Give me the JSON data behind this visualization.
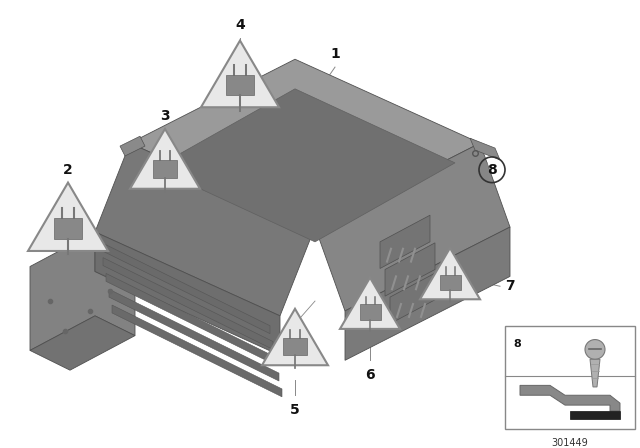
{
  "background_color": "#ffffff",
  "fig_width": 6.4,
  "fig_height": 4.48,
  "dpi": 100,
  "part_number": "301449",
  "ecm_top_color": "#8a8a8a",
  "ecm_top_highlight": "#9e9e9e",
  "ecm_left_color": "#787878",
  "ecm_right_color": "#858585",
  "ecm_dark": "#606060",
  "ecm_edge": "#505050",
  "triangle_fill": "#e8e8e8",
  "triangle_edge": "#888888",
  "label_color": "#111111",
  "line_color": "#888888",
  "inset_edge": "#888888"
}
